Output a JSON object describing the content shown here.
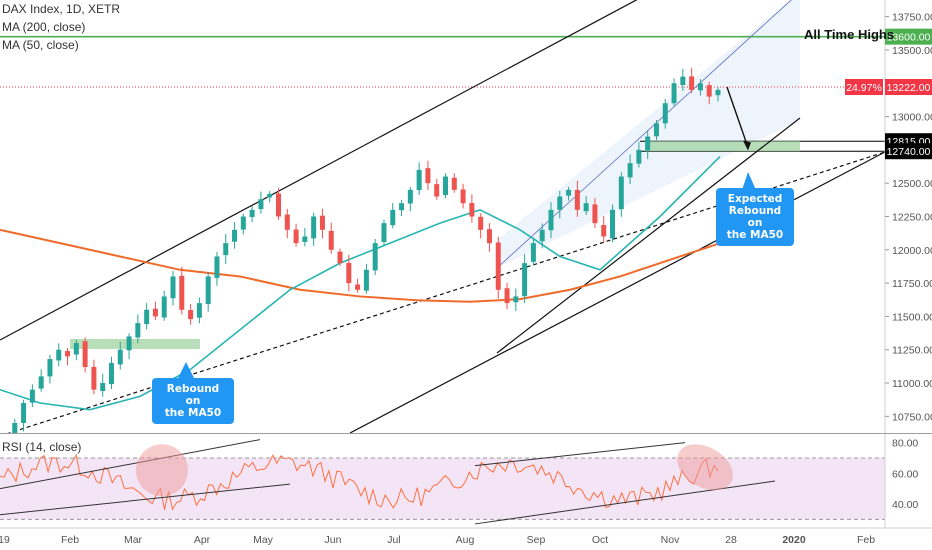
{
  "header": {
    "symbol": "DAX Index, 1D, XETR",
    "ma200": "MA (200, close)",
    "ma50": "MA (50, close)",
    "rsi": "RSI (14, close)"
  },
  "annotations": {
    "ath": "All Time Highs",
    "rebound": [
      "Rebound on",
      "the MA50"
    ],
    "expected": [
      "Expected",
      "Rebound on",
      "the MA50"
    ]
  },
  "price_tags": {
    "ath_level": "13600.00",
    "current": "13222.00",
    "change": "24.97%",
    "support_top": "12815.00",
    "support_bottom": "12740.00"
  },
  "colors": {
    "ma200": "#f06a2a",
    "ma50": "#26b5b0",
    "up": "#26a69a",
    "down": "#ef5350",
    "ath_line": "#4caf50",
    "current_tag": "#f23645",
    "rsi_line": "#ff7043",
    "rsi_band": "#f3e5f5",
    "callout": "#2196f3",
    "zone": "#a5d6a7"
  },
  "chart_data": {
    "type": "candlestick",
    "ylim": [
      10625,
      13875
    ],
    "yticks": [
      10750,
      11000,
      11250,
      11500,
      11750,
      12000,
      12250,
      12500,
      12750,
      13000,
      13250,
      13500,
      13750
    ],
    "xlabels": [
      "19",
      "Feb",
      "Mar",
      "Apr",
      "May",
      "Jun",
      "Jul",
      "Aug",
      "Sep",
      "Oct",
      "Nov",
      "28",
      "2020",
      "Feb"
    ],
    "close_path": [
      [
        10550,
        10700,
        10850,
        10950,
        11050,
        11180,
        11250,
        11200,
        11300,
        11120,
        10950,
        11000,
        11150,
        11250,
        11350,
        11450,
        11550,
        11500,
        11650,
        11800,
        11550,
        11480,
        11600,
        11800,
        11950,
        12050,
        12150,
        12250,
        12300,
        12380,
        12420,
        12250,
        12150,
        12050,
        12100,
        12250,
        12150,
        12000,
        11900,
        11750,
        11700,
        11850,
        12050,
        12200,
        12300,
        12350,
        12450,
        12600,
        12500,
        12400,
        12550,
        12450,
        12350,
        12250,
        12150,
        12050,
        11700,
        11600,
        11650,
        11900,
        12050,
        12150,
        12300,
        12400,
        12450,
        12300,
        12350,
        12200,
        12100,
        12300,
        12550,
        12650,
        12750,
        12850,
        12950,
        13100,
        13250,
        13300,
        13200,
        13250,
        13150,
        13200
      ]
    ],
    "ma200": [
      12150,
      12050,
      11950,
      11850,
      11800,
      11700,
      11650,
      11620,
      11610,
      11630,
      11700,
      11800,
      11950,
      12050,
      12180
    ],
    "ma50": [
      10950,
      10850,
      10800,
      10900,
      11100,
      11400,
      11700,
      11900,
      12050,
      12200,
      12300,
      12150,
      11950,
      11850,
      12250,
      12700
    ],
    "rsi": {
      "ylim": [
        25,
        85
      ],
      "ticks": [
        40,
        60,
        80
      ],
      "overbought": 70,
      "oversold": 30
    }
  }
}
